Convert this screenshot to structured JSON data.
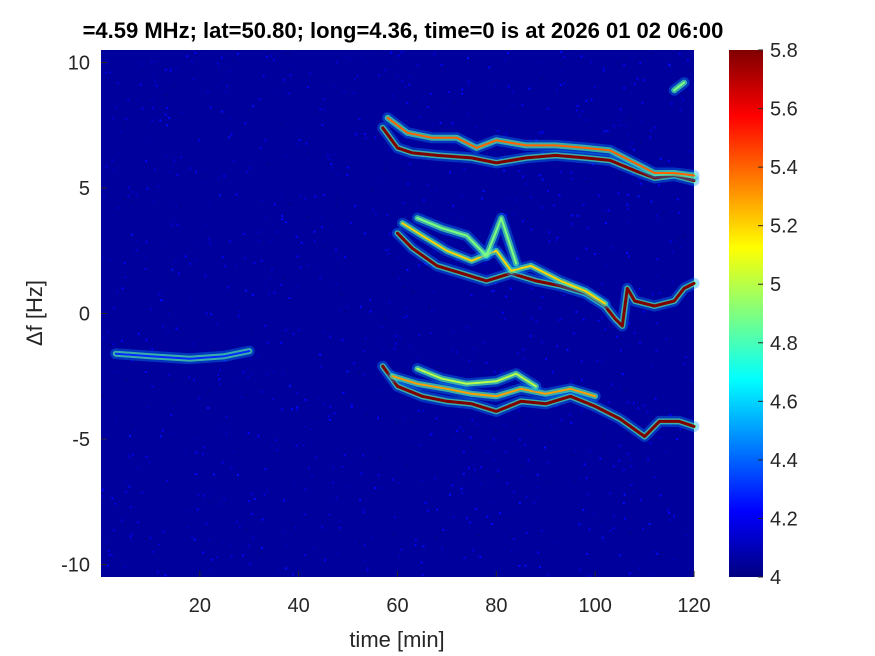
{
  "chart_data": {
    "type": "heatmap",
    "title": "=4.59 MHz;  lat=50.80; long=4.36, time=0 is at 2026 01 02 06:00",
    "xlabel": "time [min]",
    "ylabel": "Δf [Hz]",
    "xlim": [
      0,
      120
    ],
    "ylim": [
      -10.5,
      10.5
    ],
    "xticks": [
      20,
      40,
      60,
      80,
      100,
      120
    ],
    "yticks": [
      -10,
      -5,
      0,
      5,
      10
    ],
    "colorbar": {
      "colormap": "jet",
      "clim": [
        4,
        5.8
      ],
      "ticks": [
        4,
        4.2,
        4.4,
        4.6,
        4.8,
        5,
        5.2,
        5.4,
        5.6,
        5.8
      ]
    },
    "background_value": 4.05,
    "traces": [
      {
        "value": 5.8,
        "points": [
          [
            57,
            7.4
          ],
          [
            60,
            6.6
          ],
          [
            63,
            6.4
          ],
          [
            68,
            6.3
          ],
          [
            75,
            6.2
          ],
          [
            80,
            6.0
          ],
          [
            86,
            6.2
          ],
          [
            92,
            6.3
          ],
          [
            98,
            6.2
          ],
          [
            103,
            6.1
          ],
          [
            108,
            5.7
          ],
          [
            112,
            5.4
          ],
          [
            116,
            5.5
          ],
          [
            120,
            5.3
          ]
        ]
      },
      {
        "value": 5.4,
        "points": [
          [
            58,
            7.8
          ],
          [
            62,
            7.2
          ],
          [
            67,
            7.0
          ],
          [
            72,
            7.0
          ],
          [
            76,
            6.6
          ],
          [
            80,
            6.9
          ],
          [
            86,
            6.7
          ],
          [
            92,
            6.7
          ],
          [
            98,
            6.6
          ],
          [
            103,
            6.5
          ],
          [
            108,
            6.0
          ],
          [
            112,
            5.6
          ],
          [
            116,
            5.6
          ],
          [
            120,
            5.5
          ]
        ]
      },
      {
        "value": 5.8,
        "points": [
          [
            60,
            3.2
          ],
          [
            63,
            2.6
          ],
          [
            68,
            1.9
          ],
          [
            73,
            1.6
          ],
          [
            78,
            1.3
          ],
          [
            83,
            1.6
          ],
          [
            88,
            1.3
          ],
          [
            93,
            1.1
          ],
          [
            98,
            0.8
          ],
          [
            102,
            0.3
          ],
          [
            104,
            -0.2
          ],
          [
            105.5,
            -0.5
          ],
          [
            106.5,
            1.0
          ],
          [
            108,
            0.5
          ],
          [
            112,
            0.3
          ],
          [
            116,
            0.5
          ],
          [
            118,
            1.0
          ],
          [
            120,
            1.2
          ]
        ]
      },
      {
        "value": 5.2,
        "points": [
          [
            61,
            3.6
          ],
          [
            65,
            3.1
          ],
          [
            70,
            2.5
          ],
          [
            75,
            2.1
          ],
          [
            80,
            2.5
          ],
          [
            83,
            1.7
          ],
          [
            87,
            1.9
          ],
          [
            93,
            1.3
          ],
          [
            98,
            0.9
          ],
          [
            102,
            0.4
          ]
        ]
      },
      {
        "value": 4.9,
        "points": [
          [
            64,
            3.8
          ],
          [
            69,
            3.4
          ],
          [
            74,
            3.1
          ],
          [
            78,
            2.3
          ],
          [
            81,
            3.8
          ],
          [
            84,
            2.0
          ]
        ]
      },
      {
        "value": 5.8,
        "points": [
          [
            57,
            -2.1
          ],
          [
            60,
            -2.9
          ],
          [
            65,
            -3.3
          ],
          [
            70,
            -3.5
          ],
          [
            75,
            -3.6
          ],
          [
            80,
            -3.9
          ],
          [
            85,
            -3.5
          ],
          [
            90,
            -3.6
          ],
          [
            95,
            -3.3
          ],
          [
            100,
            -3.7
          ],
          [
            105,
            -4.2
          ],
          [
            110,
            -4.9
          ],
          [
            113,
            -4.3
          ],
          [
            117,
            -4.3
          ],
          [
            120,
            -4.5
          ]
        ]
      },
      {
        "value": 5.3,
        "points": [
          [
            59,
            -2.5
          ],
          [
            64,
            -2.8
          ],
          [
            70,
            -3.0
          ],
          [
            75,
            -3.2
          ],
          [
            80,
            -3.3
          ],
          [
            85,
            -3.0
          ],
          [
            90,
            -3.2
          ],
          [
            95,
            -3.0
          ],
          [
            100,
            -3.3
          ]
        ]
      },
      {
        "value": 5.0,
        "points": [
          [
            64,
            -2.2
          ],
          [
            69,
            -2.6
          ],
          [
            74,
            -2.8
          ],
          [
            80,
            -2.7
          ],
          [
            84,
            -2.4
          ],
          [
            88,
            -2.9
          ]
        ]
      },
      {
        "value": 4.3,
        "points": [
          [
            3,
            -1.6
          ],
          [
            10,
            -1.7
          ],
          [
            18,
            -1.8
          ],
          [
            25,
            -1.7
          ],
          [
            30,
            -1.5
          ]
        ]
      },
      {
        "value": 4.9,
        "points": [
          [
            116,
            8.9
          ],
          [
            118,
            9.2
          ]
        ]
      }
    ]
  }
}
